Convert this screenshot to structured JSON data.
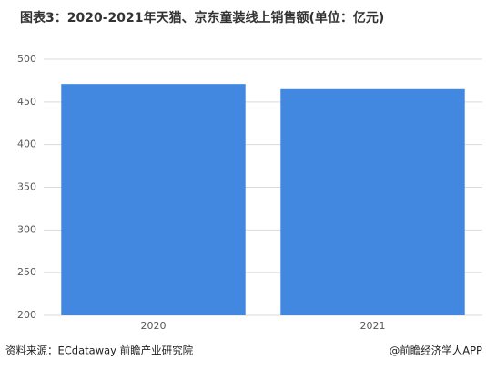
{
  "chart_data": {
    "type": "bar",
    "title": "图表3：2020-2021年天猫、京东童装线上销售额(单位：亿元)",
    "categories": [
      "2020",
      "2021"
    ],
    "values": [
      471,
      465
    ],
    "color": "#4388e0",
    "ylim": [
      200,
      500
    ],
    "yticks": [
      200,
      250,
      300,
      350,
      400,
      450,
      500
    ],
    "grid": true,
    "source": "资料来源：ECdataway 前瞻产业研究院",
    "credit": "@前瞻经济学人APP"
  }
}
